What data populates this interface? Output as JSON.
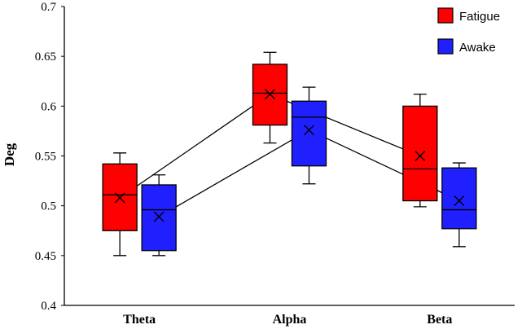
{
  "chart_data": {
    "type": "box",
    "categories": [
      "Theta",
      "Alpha",
      "Beta"
    ],
    "ylabel": "Deg",
    "xlabel": "",
    "ylim": [
      0.4,
      0.7
    ],
    "yticks": [
      0.4,
      0.45,
      0.5,
      0.55,
      0.6,
      0.65,
      0.7
    ],
    "ytick_labels": [
      "0.4",
      "0.45",
      "0.5",
      "0.55",
      "0.6",
      "0.65",
      "0.7"
    ],
    "grid": false,
    "legend_position": "top-right",
    "series": [
      {
        "name": "Fatigue",
        "color": "#ff0000",
        "boxes": [
          {
            "min": 0.45,
            "q1": 0.475,
            "median": 0.511,
            "q3": 0.542,
            "max": 0.553,
            "mean": 0.508
          },
          {
            "min": 0.563,
            "q1": 0.581,
            "median": 0.613,
            "q3": 0.642,
            "max": 0.654,
            "mean": 0.612
          },
          {
            "min": 0.499,
            "q1": 0.505,
            "median": 0.537,
            "q3": 0.6,
            "max": 0.612,
            "mean": 0.55
          }
        ]
      },
      {
        "name": "Awake",
        "color": "#2020ff",
        "boxes": [
          {
            "min": 0.45,
            "q1": 0.455,
            "median": 0.496,
            "q3": 0.521,
            "max": 0.531,
            "mean": 0.489
          },
          {
            "min": 0.522,
            "q1": 0.54,
            "median": 0.589,
            "q3": 0.605,
            "max": 0.619,
            "mean": 0.576
          },
          {
            "min": 0.459,
            "q1": 0.477,
            "median": 0.496,
            "q3": 0.538,
            "max": 0.543,
            "mean": 0.505
          }
        ]
      }
    ]
  }
}
